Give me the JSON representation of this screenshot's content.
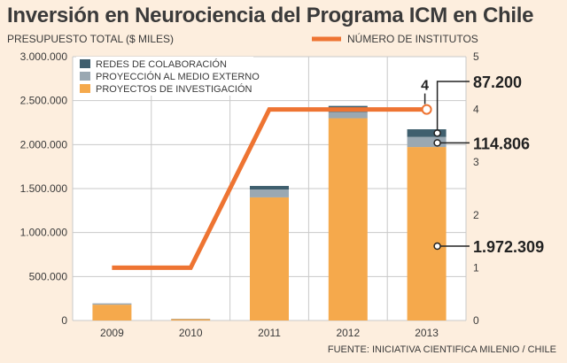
{
  "title": "Inversión en Neurociencia del Programa ICM en Chile",
  "source": "FUENTE: INICIATIVA CIENTIFICA MILENIO / CHILE",
  "colors": {
    "background": "#fdeede",
    "plot_background": "#ffffff",
    "redes": "#3f5f6e",
    "proyeccion": "#9aa8b2",
    "proyectos": "#f5a94c",
    "institutos_line": "#ee7432",
    "text": "#3a3a3a"
  },
  "chart_data": {
    "type": "bar",
    "stacked": true,
    "categories": [
      "2009",
      "2010",
      "2011",
      "2012",
      "2013"
    ],
    "ylabel": "PRESUPUESTO TOTAL ($ MILES)",
    "ylim": [
      0,
      3000000
    ],
    "yticks": [
      "3.000.000",
      "2.500.000",
      "2.000.000",
      "1.500.000",
      "1.000.000",
      "500.000",
      "0"
    ],
    "y2ticks": [
      "5",
      "4",
      "3",
      "2",
      "1",
      "0"
    ],
    "y2lim": [
      0,
      5
    ],
    "grid": true,
    "legend_position": "top-left",
    "series": [
      {
        "name": "REDES DE COLABORACIÓN",
        "values": [
          0,
          0,
          40000,
          70000,
          87200
        ]
      },
      {
        "name": "PROYECCIÓN AL MEDIO EXTERNO",
        "values": [
          15000,
          5000,
          90000,
          70000,
          114806
        ]
      },
      {
        "name": "PROYECTOS DE INVESTIGACIÓN",
        "values": [
          180000,
          15000,
          1400000,
          2300000,
          1972309
        ]
      }
    ],
    "line_series": {
      "name": "NÚMERO DE INSTITUTOS",
      "x": [
        2009,
        2010,
        2011,
        2012,
        2013
      ],
      "values": [
        1,
        1,
        4,
        4,
        4
      ],
      "axis": "right"
    },
    "annotations": [
      {
        "text": "4",
        "target": "institutos-2013"
      },
      {
        "text": "87.200",
        "target": "redes-2013"
      },
      {
        "text": "114.806",
        "target": "proyeccion-2013"
      },
      {
        "text": "1.972.309",
        "target": "proyectos-2013"
      }
    ]
  }
}
